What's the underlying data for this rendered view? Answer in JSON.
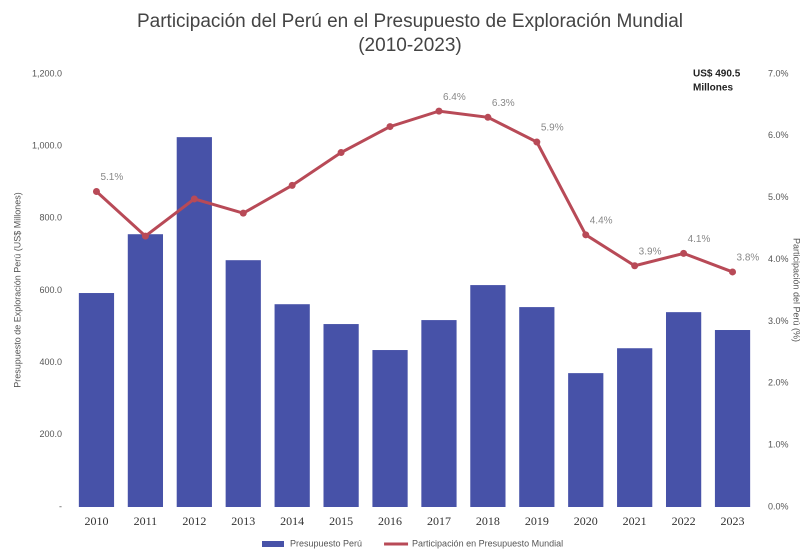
{
  "chart_data": {
    "type": "bar",
    "title": "Participación del Perú en el Presupuesto de Exploración Mundial",
    "subtitle": "(2010-2023)",
    "y_label": "Presupuesto de Exploración Perú (US$ Millones)",
    "y2_label": "Participación del Perú (%)",
    "annotation": [
      "US$ 490.5",
      "Millones"
    ],
    "categories": [
      "2010",
      "2011",
      "2012",
      "2013",
      "2014",
      "2015",
      "2016",
      "2017",
      "2018",
      "2019",
      "2020",
      "2021",
      "2022",
      "2023"
    ],
    "series": [
      {
        "name": "Presupuesto Perú",
        "type": "bar",
        "color": "#4752a8",
        "values": [
          593,
          756,
          1025,
          684,
          562,
          507,
          435,
          518,
          615,
          554,
          371,
          440,
          540,
          490.5
        ]
      },
      {
        "name": "Participación en Presupuesto Mundial",
        "type": "line",
        "axis": "y2",
        "color": "#b84a57",
        "values": [
          5.1,
          4.38,
          4.98,
          4.75,
          5.2,
          5.73,
          6.15,
          6.4,
          6.3,
          5.9,
          4.4,
          3.9,
          4.1,
          3.8
        ],
        "value_labels": [
          "5.1%",
          null,
          null,
          null,
          null,
          null,
          null,
          "6.4%",
          "6.3%",
          "5.9%",
          "4.4%",
          "3.9%",
          "4.1%",
          "3.8%"
        ]
      }
    ],
    "ylim": [
      0,
      1200
    ],
    "yticks": [
      {
        "value": 0,
        "label": "-"
      },
      {
        "value": 200,
        "label": "200.0"
      },
      {
        "value": 400,
        "label": "400.0"
      },
      {
        "value": 600,
        "label": "600.0"
      },
      {
        "value": 800,
        "label": "800.0"
      },
      {
        "value": 1000,
        "label": "1,000.0"
      },
      {
        "value": 1200,
        "label": "1,200.0"
      }
    ],
    "y2lim": [
      0,
      7
    ],
    "y2ticks": [
      {
        "value": 0,
        "label": "0.0%"
      },
      {
        "value": 1,
        "label": "1.0%"
      },
      {
        "value": 2,
        "label": "2.0%"
      },
      {
        "value": 3,
        "label": "3.0%"
      },
      {
        "value": 4,
        "label": "4.0%"
      },
      {
        "value": 5,
        "label": "5.0%"
      },
      {
        "value": 6,
        "label": "6.0%"
      },
      {
        "value": 7,
        "label": "7.0%"
      }
    ],
    "grid": false,
    "legend": "bottom"
  }
}
